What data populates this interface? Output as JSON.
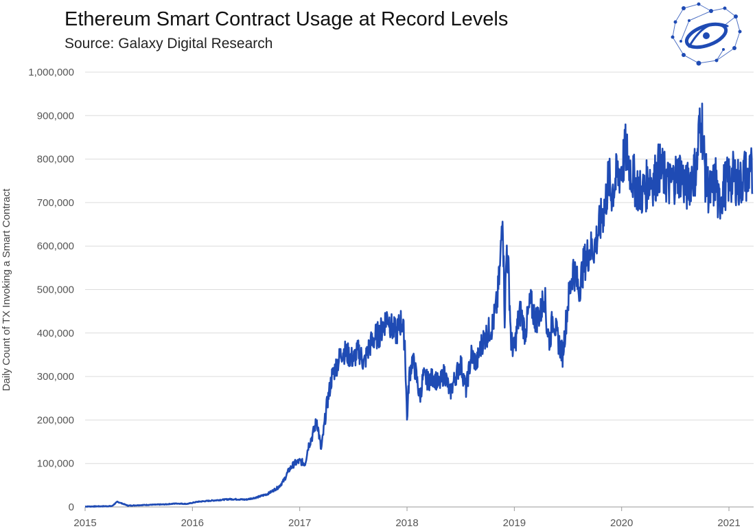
{
  "header": {
    "title": "Ethereum Smart Contract Usage at Record Levels",
    "subtitle": "Source: Galaxy Digital Research",
    "logo_icon": "galaxy-network-logo-icon"
  },
  "colors": {
    "series": "#1f4bb4",
    "grid": "#dcdcdc",
    "text": "#555555"
  },
  "chart_data": {
    "type": "line",
    "title": "Ethereum Smart Contract Usage at Record Levels",
    "subtitle": "Source: Galaxy Digital Research",
    "xlabel": "",
    "ylabel": "Daily Count of TX Invoking a Smart Contract",
    "xlim": [
      2015.0,
      2021.23
    ],
    "ylim": [
      0,
      1000000
    ],
    "x_ticks": [
      2015,
      2016,
      2017,
      2018,
      2019,
      2020,
      2021
    ],
    "x_tick_labels": [
      "2015",
      "2016",
      "2017",
      "2018",
      "2019",
      "2020",
      "2021"
    ],
    "y_ticks": [
      0,
      100000,
      200000,
      300000,
      400000,
      500000,
      600000,
      700000,
      800000,
      900000,
      1000000
    ],
    "y_tick_labels": [
      "0",
      "100,000",
      "200,000",
      "300,000",
      "400,000",
      "500,000",
      "600,000",
      "700,000",
      "800,000",
      "900,000",
      "1,000,000"
    ],
    "grid": true,
    "series": [
      {
        "name": "Daily Count of TX Invoking a Smart Contract",
        "x": [
          2015.0,
          2015.15,
          2015.25,
          2015.3,
          2015.4,
          2015.5,
          2015.6,
          2015.75,
          2015.85,
          2015.95,
          2016.05,
          2016.2,
          2016.35,
          2016.5,
          2016.6,
          2016.7,
          2016.8,
          2016.85,
          2016.9,
          2016.95,
          2017.0,
          2017.05,
          2017.08,
          2017.12,
          2017.16,
          2017.2,
          2017.25,
          2017.3,
          2017.35,
          2017.4,
          2017.45,
          2017.5,
          2017.55,
          2017.6,
          2017.65,
          2017.7,
          2017.75,
          2017.78,
          2017.82,
          2017.86,
          2017.9,
          2017.95,
          2017.98,
          2018.0,
          2018.02,
          2018.05,
          2018.08,
          2018.12,
          2018.15,
          2018.2,
          2018.25,
          2018.3,
          2018.35,
          2018.4,
          2018.45,
          2018.5,
          2018.55,
          2018.6,
          2018.65,
          2018.7,
          2018.75,
          2018.8,
          2018.84,
          2018.87,
          2018.89,
          2018.91,
          2018.93,
          2018.95,
          2018.97,
          2019.0,
          2019.03,
          2019.06,
          2019.1,
          2019.15,
          2019.2,
          2019.25,
          2019.28,
          2019.3,
          2019.33,
          2019.36,
          2019.4,
          2019.45,
          2019.5,
          2019.55,
          2019.6,
          2019.65,
          2019.7,
          2019.75,
          2019.8,
          2019.85,
          2019.88,
          2019.9,
          2019.93,
          2019.96,
          2020.0,
          2020.04,
          2020.07,
          2020.1,
          2020.14,
          2020.18,
          2020.22,
          2020.26,
          2020.3,
          2020.35,
          2020.4,
          2020.45,
          2020.5,
          2020.55,
          2020.6,
          2020.65,
          2020.7,
          2020.72,
          2020.75,
          2020.78,
          2020.82,
          2020.85,
          2020.88,
          2020.9,
          2020.93,
          2020.96,
          2021.0,
          2021.05,
          2021.1,
          2021.15,
          2021.18,
          2021.2,
          2021.22
        ],
        "y": [
          1000,
          1500,
          2000,
          12000,
          3000,
          4000,
          5000,
          6000,
          8000,
          7000,
          12000,
          15000,
          18000,
          17000,
          22000,
          30000,
          45000,
          60000,
          85000,
          100000,
          105000,
          100000,
          140000,
          165000,
          200000,
          130000,
          230000,
          300000,
          330000,
          360000,
          350000,
          340000,
          360000,
          330000,
          370000,
          390000,
          400000,
          420000,
          440000,
          410000,
          400000,
          430000,
          380000,
          200000,
          300000,
          340000,
          310000,
          250000,
          300000,
          290000,
          300000,
          280000,
          310000,
          260000,
          300000,
          330000,
          270000,
          350000,
          330000,
          380000,
          400000,
          420000,
          470000,
          560000,
          700000,
          440000,
          600000,
          520000,
          380000,
          360000,
          420000,
          450000,
          400000,
          470000,
          430000,
          450000,
          500000,
          420000,
          380000,
          440000,
          390000,
          350000,
          470000,
          550000,
          500000,
          560000,
          590000,
          600000,
          650000,
          700000,
          760000,
          720000,
          740000,
          760000,
          780000,
          820000,
          790000,
          760000,
          740000,
          720000,
          730000,
          760000,
          750000,
          780000,
          760000,
          740000,
          760000,
          770000,
          730000,
          760000,
          780000,
          860000,
          880000,
          760000,
          720000,
          730000,
          760000,
          690000,
          720000,
          740000,
          750000,
          760000,
          740000,
          770000,
          740000,
          820000,
          720000
        ]
      }
    ]
  }
}
